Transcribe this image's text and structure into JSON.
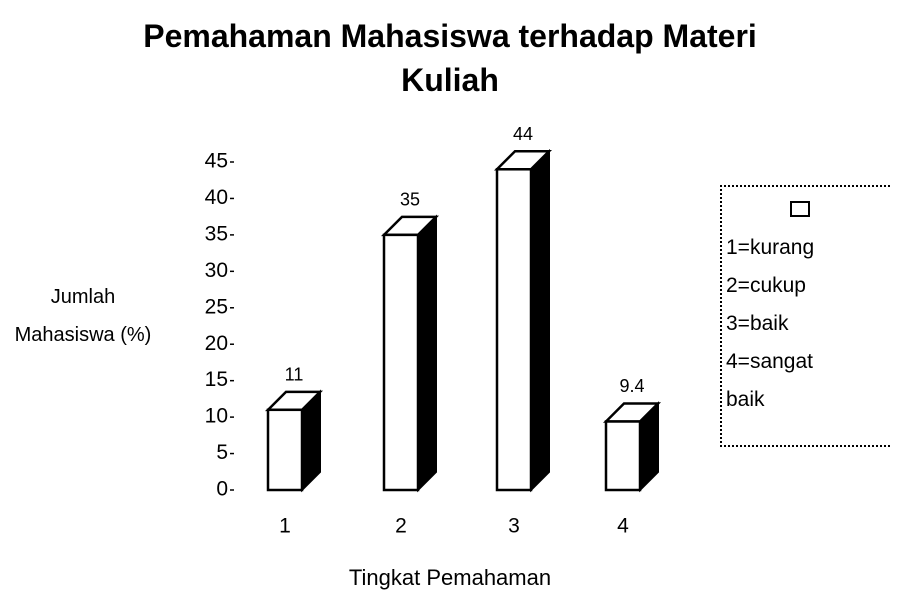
{
  "chart_data": {
    "type": "bar",
    "title": "Pemahaman Mahasiswa terhadap Materi Kuliah",
    "xlabel": "Tingkat Pemahaman",
    "ylabel": "Jumlah Mahasiswa (%)",
    "categories": [
      "1",
      "2",
      "3",
      "4"
    ],
    "values": [
      11,
      35,
      44,
      9.4
    ],
    "color": "#ffffff",
    "ylim": [
      0,
      45
    ],
    "yticks": [
      0,
      5,
      10,
      15,
      20,
      25,
      30,
      35,
      40,
      45
    ],
    "legend": [
      "1=kurang",
      "2=cukup",
      "3=baik",
      "4=sangat baik"
    ]
  }
}
